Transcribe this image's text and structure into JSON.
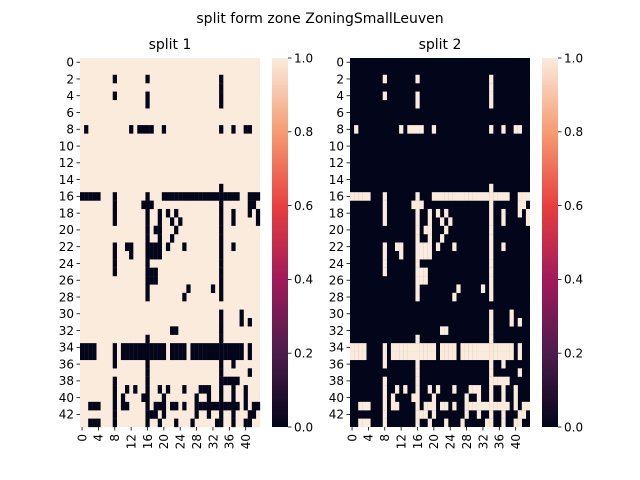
{
  "chart_data": {
    "type": "heatmap",
    "suptitle": "split form zone ZoningSmallLeuven",
    "n_rows": 44,
    "n_cols": 44,
    "y_tick_labels": [
      "0",
      "2",
      "4",
      "6",
      "8",
      "10",
      "12",
      "14",
      "16",
      "18",
      "20",
      "22",
      "24",
      "26",
      "28",
      "30",
      "32",
      "34",
      "36",
      "38",
      "40",
      "42"
    ],
    "x_tick_labels": [
      "0",
      "4",
      "8",
      "12",
      "16",
      "20",
      "24",
      "28",
      "32",
      "36",
      "40"
    ],
    "colorbar": {
      "min": 0.0,
      "max": 1.0,
      "ticks": [
        "0.0",
        "0.2",
        "0.4",
        "0.6",
        "0.8",
        "1.0"
      ]
    },
    "colormap": [
      "#03051a",
      "#4c1d4b",
      "#a11a5b",
      "#e83f3f",
      "#f69c73",
      "#faebdd"
    ],
    "panels": [
      {
        "title": "split 1",
        "matrix_value_one_means": "light",
        "note": "split 2 matrix is the complement (1 - value) of split 1"
      },
      {
        "title": "split 2"
      }
    ],
    "matrix_split1_dark_rows": {
      "2": [
        8,
        16,
        34
      ],
      "3": [
        34
      ],
      "4": [
        8,
        16,
        34
      ],
      "5": [
        16,
        34
      ],
      "8": [
        1,
        12,
        14,
        15,
        16,
        17,
        20,
        34,
        37,
        40,
        41
      ],
      "15": [
        34
      ],
      "16": [
        0,
        1,
        2,
        3,
        4,
        8,
        16,
        20,
        21,
        22,
        23,
        24,
        25,
        26,
        27,
        28,
        29,
        30,
        31,
        32,
        33,
        34,
        35,
        36,
        37,
        38,
        41,
        42,
        43
      ],
      "17": [
        8,
        15,
        16,
        17,
        34,
        41,
        42
      ],
      "18": [
        8,
        16,
        19,
        21,
        23,
        34,
        37,
        41,
        43
      ],
      "19": [
        8,
        16,
        19,
        22,
        24,
        34,
        37,
        43
      ],
      "20": [
        16,
        18,
        19,
        23,
        34
      ],
      "21": [
        16,
        19,
        22,
        34
      ],
      "22": [
        8,
        11,
        12,
        16,
        17,
        18,
        19,
        21,
        25,
        34,
        37
      ],
      "23": [
        8,
        12,
        16,
        17,
        18,
        19,
        34
      ],
      "24": [
        8,
        16,
        34
      ],
      "25": [
        8,
        16,
        17,
        18,
        34
      ],
      "26": [
        16,
        17,
        18,
        34
      ],
      "27": [
        16,
        26,
        32,
        34
      ],
      "28": [
        16,
        25,
        34
      ],
      "30": [
        34,
        39
      ],
      "31": [
        34,
        39,
        41
      ],
      "32": [
        22,
        23,
        34
      ],
      "33": [
        16,
        34
      ],
      "34": [
        0,
        1,
        2,
        3,
        8,
        10,
        11,
        12,
        13,
        14,
        15,
        16,
        17,
        18,
        19,
        20,
        22,
        23,
        24,
        25,
        27,
        28,
        29,
        30,
        31,
        32,
        33,
        34,
        35,
        36,
        37,
        38,
        39,
        41
      ],
      "35": [
        0,
        1,
        2,
        3,
        8,
        10,
        11,
        12,
        13,
        14,
        15,
        16,
        17,
        18,
        19,
        20,
        22,
        23,
        24,
        25,
        27,
        28,
        29,
        30,
        31,
        32,
        33,
        34,
        35,
        36,
        37,
        38,
        39,
        41
      ],
      "36": [
        8,
        16,
        34,
        37
      ],
      "37": [
        16,
        34,
        41
      ],
      "38": [
        8,
        16,
        34,
        35,
        36,
        37,
        38
      ],
      "39": [
        8,
        11,
        13,
        16,
        19,
        21,
        25,
        29,
        30,
        31,
        34,
        37,
        40
      ],
      "40": [
        8,
        10,
        15,
        16,
        20,
        28,
        31,
        34,
        37,
        40
      ],
      "41": [
        2,
        3,
        4,
        8,
        10,
        11,
        16,
        18,
        19,
        20,
        22,
        23,
        25,
        28,
        29,
        30,
        31,
        32,
        33,
        34,
        35,
        36,
        37,
        38,
        40,
        42,
        43
      ],
      "42": [
        8,
        16,
        17,
        18,
        20,
        28,
        31,
        34,
        37,
        41,
        42
      ],
      "43": [
        2,
        3,
        4,
        8,
        16,
        19,
        23,
        27,
        33,
        34,
        37,
        40,
        41
      ]
    }
  }
}
